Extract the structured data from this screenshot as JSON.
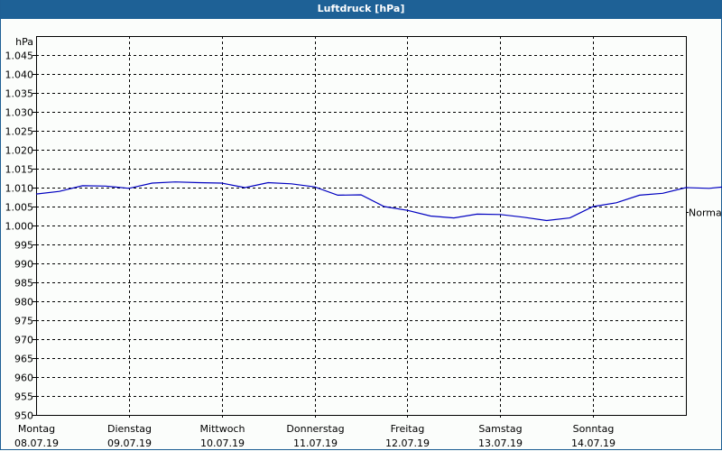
{
  "window": {
    "title": "Luftdruck [hPa]"
  },
  "colors": {
    "titlebar": "#1e6196",
    "line": "#0000c0",
    "grid": "#000000",
    "background": "#fbfdfb"
  },
  "chart_data": {
    "type": "line",
    "title": "Luftdruck [hPa]",
    "ylabel": "hPa",
    "xlabel": "",
    "ylim": [
      950,
      1050
    ],
    "y_ticks": [
      "1.045",
      "1.040",
      "1.035",
      "1.030",
      "1.025",
      "1.020",
      "1.015",
      "1.010",
      "1.005",
      "1.000",
      "995",
      "990",
      "985",
      "980",
      "975",
      "970",
      "965",
      "960",
      "955",
      "950"
    ],
    "y_tick_values": [
      1045,
      1040,
      1035,
      1030,
      1025,
      1020,
      1015,
      1010,
      1005,
      1000,
      995,
      990,
      985,
      980,
      975,
      970,
      965,
      960,
      955,
      950
    ],
    "categories": [
      {
        "day": "Montag",
        "date": "08.07.19"
      },
      {
        "day": "Dienstag",
        "date": "09.07.19"
      },
      {
        "day": "Mittwoch",
        "date": "10.07.19"
      },
      {
        "day": "Donnerstag",
        "date": "11.07.19"
      },
      {
        "day": "Freitag",
        "date": "12.07.19"
      },
      {
        "day": "Samstag",
        "date": "13.07.19"
      },
      {
        "day": "Sonntag",
        "date": "14.07.19"
      }
    ],
    "reference_line": {
      "label": "Normal",
      "value": 1003.5
    },
    "grid": true,
    "series": [
      {
        "name": "Luftdruck",
        "x_hours": [
          0,
          6,
          12,
          18,
          24,
          30,
          36,
          42,
          48,
          54,
          60,
          66,
          72,
          78,
          84,
          90,
          96,
          102,
          108,
          114,
          120,
          126,
          132,
          138,
          144,
          150,
          156,
          162,
          168
        ],
        "values": [
          1008.3,
          1009.0,
          1010.5,
          1010.4,
          1009.8,
          1011.2,
          1011.5,
          1011.3,
          1011.2,
          1010.0,
          1011.3,
          1011.0,
          1010.2,
          1008.0,
          1008.1,
          1005.0,
          1004.0,
          1002.5,
          1002.0,
          1003.0,
          1002.9,
          1002.2,
          1001.3,
          1002.0,
          1005.0,
          1006.0,
          1008.0,
          1008.5,
          1010.0
        ],
        "values_tail": [
          1010.0,
          1009.8,
          1010.4,
          1010.0,
          1010.0
        ]
      }
    ]
  }
}
